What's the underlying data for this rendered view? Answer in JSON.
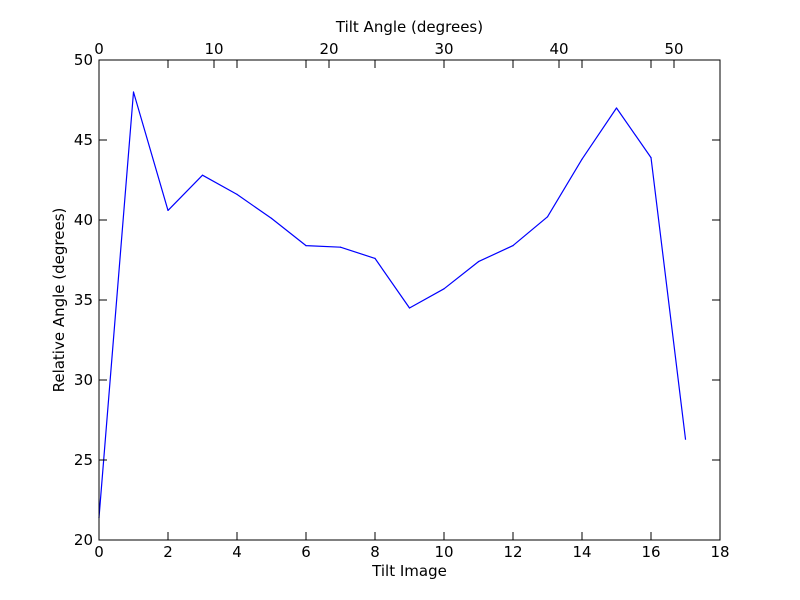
{
  "chart_data": {
    "type": "line",
    "xlabel": "Tilt Image",
    "ylabel": "Relative Angle (degrees)",
    "top_xlabel": "Tilt Angle (degrees)",
    "xlim": [
      0,
      18
    ],
    "ylim": [
      20,
      50
    ],
    "top_xlim": [
      0,
      54
    ],
    "x_ticks": [
      0,
      2,
      4,
      6,
      8,
      10,
      12,
      14,
      16,
      18
    ],
    "y_ticks": [
      20,
      25,
      30,
      35,
      40,
      45,
      50
    ],
    "top_x_ticks": [
      0,
      10,
      20,
      30,
      40,
      50
    ],
    "grid": false,
    "line_color": "#0000ff",
    "series": [
      {
        "x": [
          0,
          1,
          2,
          3,
          4,
          5,
          6,
          7,
          8,
          9,
          10,
          11,
          12,
          13,
          14,
          15,
          16,
          17
        ],
        "y": [
          21.4,
          48.0,
          40.6,
          42.8,
          41.6,
          40.1,
          38.4,
          38.3,
          37.6,
          34.5,
          35.7,
          37.4,
          38.4,
          40.2,
          43.8,
          47.0,
          43.9,
          26.3
        ]
      }
    ]
  }
}
